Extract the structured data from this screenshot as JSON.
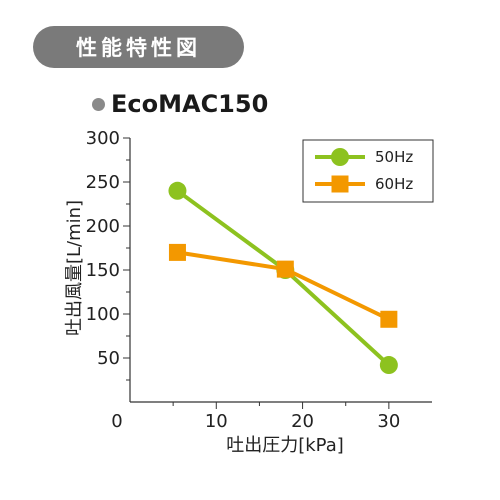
{
  "header": {
    "title": "性能特性図"
  },
  "model": {
    "name": "EcoMAC150"
  },
  "colors": {
    "series_50hz": "#8dc21f",
    "series_60hz": "#f39800",
    "header_bg": "#7a7a7a",
    "dot": "#8a8a8a"
  },
  "chart_data": {
    "type": "line",
    "xlabel": "吐出圧力[kPa]",
    "ylabel": "吐出風量[L/min]",
    "xlim": [
      0,
      35
    ],
    "ylim": [
      0,
      300
    ],
    "x_ticks": [
      "0",
      "10",
      "20",
      "30"
    ],
    "y_ticks": [
      "50",
      "100",
      "150",
      "200",
      "250",
      "300"
    ],
    "legend_position": "top-right",
    "series": [
      {
        "name": "50Hz",
        "marker": "circle",
        "x": [
          5.5,
          18,
          30
        ],
        "y": [
          240,
          150,
          42
        ]
      },
      {
        "name": "60Hz",
        "marker": "square",
        "x": [
          5.5,
          18,
          30
        ],
        "y": [
          170,
          151,
          94
        ]
      }
    ]
  }
}
